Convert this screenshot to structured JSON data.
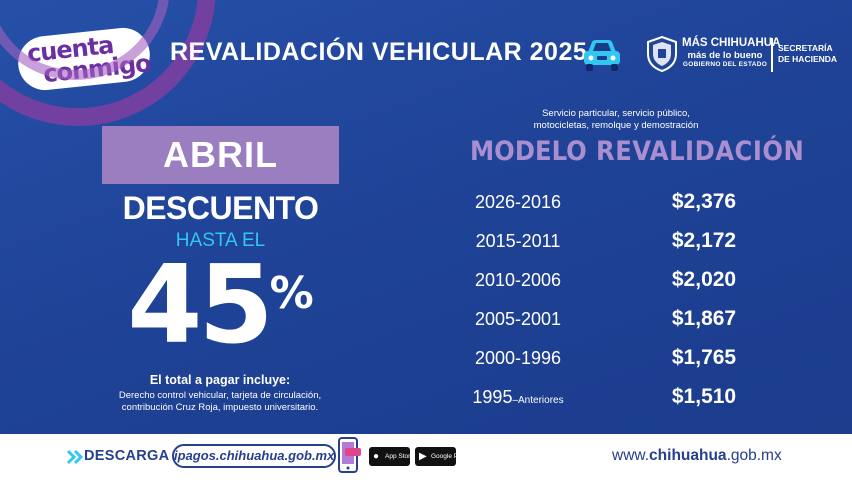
{
  "header": {
    "logo_line1": "cuenta",
    "logo_line2": "conmigo",
    "title": "REVALIDACIÓN VEHICULAR 2025",
    "gov_line1": "MÁS CHIHUAHUA",
    "gov_line2": "más de lo bueno",
    "gov_line3": "GOBIERNO DEL ESTADO",
    "secretaria_line1": "SECRETARÍA",
    "secretaria_line2": "DE HACIENDA"
  },
  "promo": {
    "month": "ABRIL",
    "discount_label": "DESCUENTO",
    "hasta": "HASTA EL",
    "percent_value": "45",
    "percent_sign": "%",
    "includes_title": "El total a pagar incluye:",
    "includes_line1": "Derecho control vehicular, tarjeta de circulación,",
    "includes_line2": "contribución Cruz Roja, impuesto universitario."
  },
  "table": {
    "note_line1": "Servicio particular, servicio público,",
    "note_line2": "motocicletas, remolque y demostración",
    "col_model": "MODELO",
    "col_reval": "REVALIDACIÓN",
    "rows": [
      {
        "model": "2026-2016",
        "model_sub": "",
        "price": "$2,376"
      },
      {
        "model": "2015-2011",
        "model_sub": "",
        "price": "$2,172"
      },
      {
        "model": "2010-2006",
        "model_sub": "",
        "price": "$2,020"
      },
      {
        "model": "2005-2001",
        "model_sub": "",
        "price": "$1,867"
      },
      {
        "model": "2000-1996",
        "model_sub": "",
        "price": "$1,765"
      },
      {
        "model": "1995",
        "model_sub": "–Anteriores",
        "price": "$1,510"
      }
    ]
  },
  "footer": {
    "descarga": "DESCARGA",
    "url": "ipagos.chihuahua.gob.mx",
    "appstore_label": "App Store",
    "googleplay_label": "Google Play",
    "website_prefix": "www.",
    "website_bold": "chihuahua",
    "website_suffix": ".gob.mx"
  },
  "colors": {
    "background": "#1f4397",
    "accent_purple": "#9a7ec0",
    "header_purple": "#a98fd0",
    "cyan": "#33c6f0",
    "footer_text": "#27408b"
  },
  "icons": [
    "car-icon",
    "seal-icon",
    "chevron-right-icon",
    "phone-icon",
    "apple-icon",
    "play-icon"
  ]
}
